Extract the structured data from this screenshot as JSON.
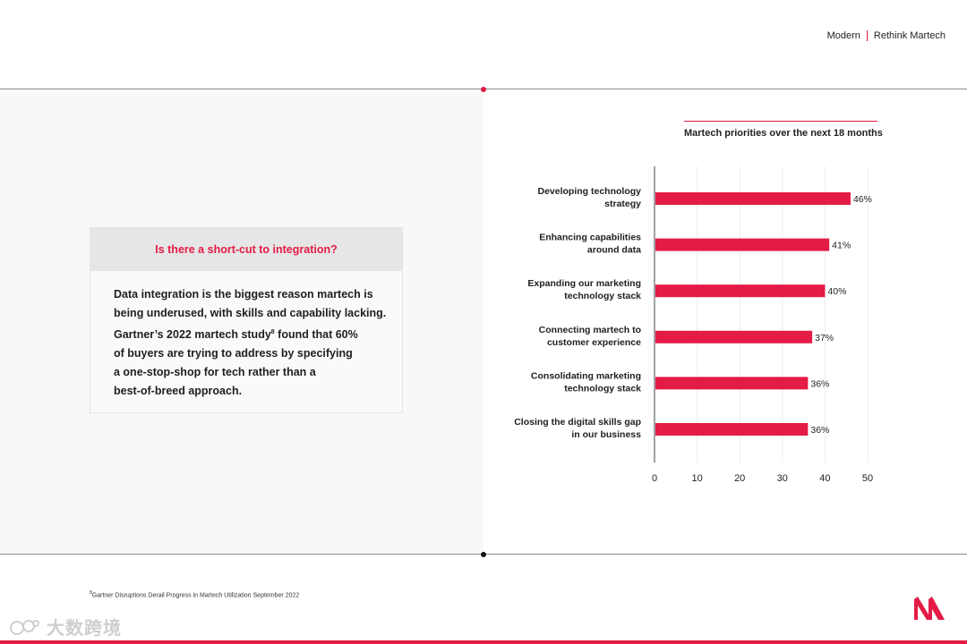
{
  "header": {
    "brand_left": "Modern",
    "brand_right": "Rethink Martech"
  },
  "callout": {
    "heading": "Is there a short-cut to integration?",
    "lines": [
      "Data integration is the biggest reason martech is",
      "being underused, with skills and capability lacking.",
      "Gartner’s 2022 martech study",
      "of buyers are trying to address by specifying",
      "a one-stop-shop for tech rather than a",
      "best-of-breed approach."
    ],
    "superscript": "8",
    "line3_tail": " found that 60%"
  },
  "chart_data": {
    "type": "bar",
    "orientation": "horizontal",
    "title": "Martech priorities over the next 18 months",
    "categories": [
      [
        "Developing technology",
        "strategy"
      ],
      [
        "Enhancing capabilities",
        "around data"
      ],
      [
        "Expanding our marketing",
        "technology stack"
      ],
      [
        "Connecting martech to",
        "customer experience"
      ],
      [
        "Consolidating marketing",
        "technology stack"
      ],
      [
        "Closing the digital skills gap",
        "in our business"
      ]
    ],
    "values": [
      46,
      41,
      40,
      37,
      36,
      36
    ],
    "value_labels": [
      "46%",
      "41%",
      "40%",
      "37%",
      "36%",
      "36%"
    ],
    "xlim": [
      0,
      50
    ],
    "xticks": [
      0,
      10,
      20,
      30,
      40,
      50
    ],
    "grid": "vertical",
    "bar_color": "#e31b45"
  },
  "footnote": {
    "marker": "8",
    "text": "Gartner Disruptions Derail Progress in Martech Utilization September 2022"
  },
  "watermark": {
    "text": "大数跨境"
  },
  "colors": {
    "accent": "#e31b45",
    "panel": "#f8f8f8",
    "rule": "#8a8a8a"
  }
}
